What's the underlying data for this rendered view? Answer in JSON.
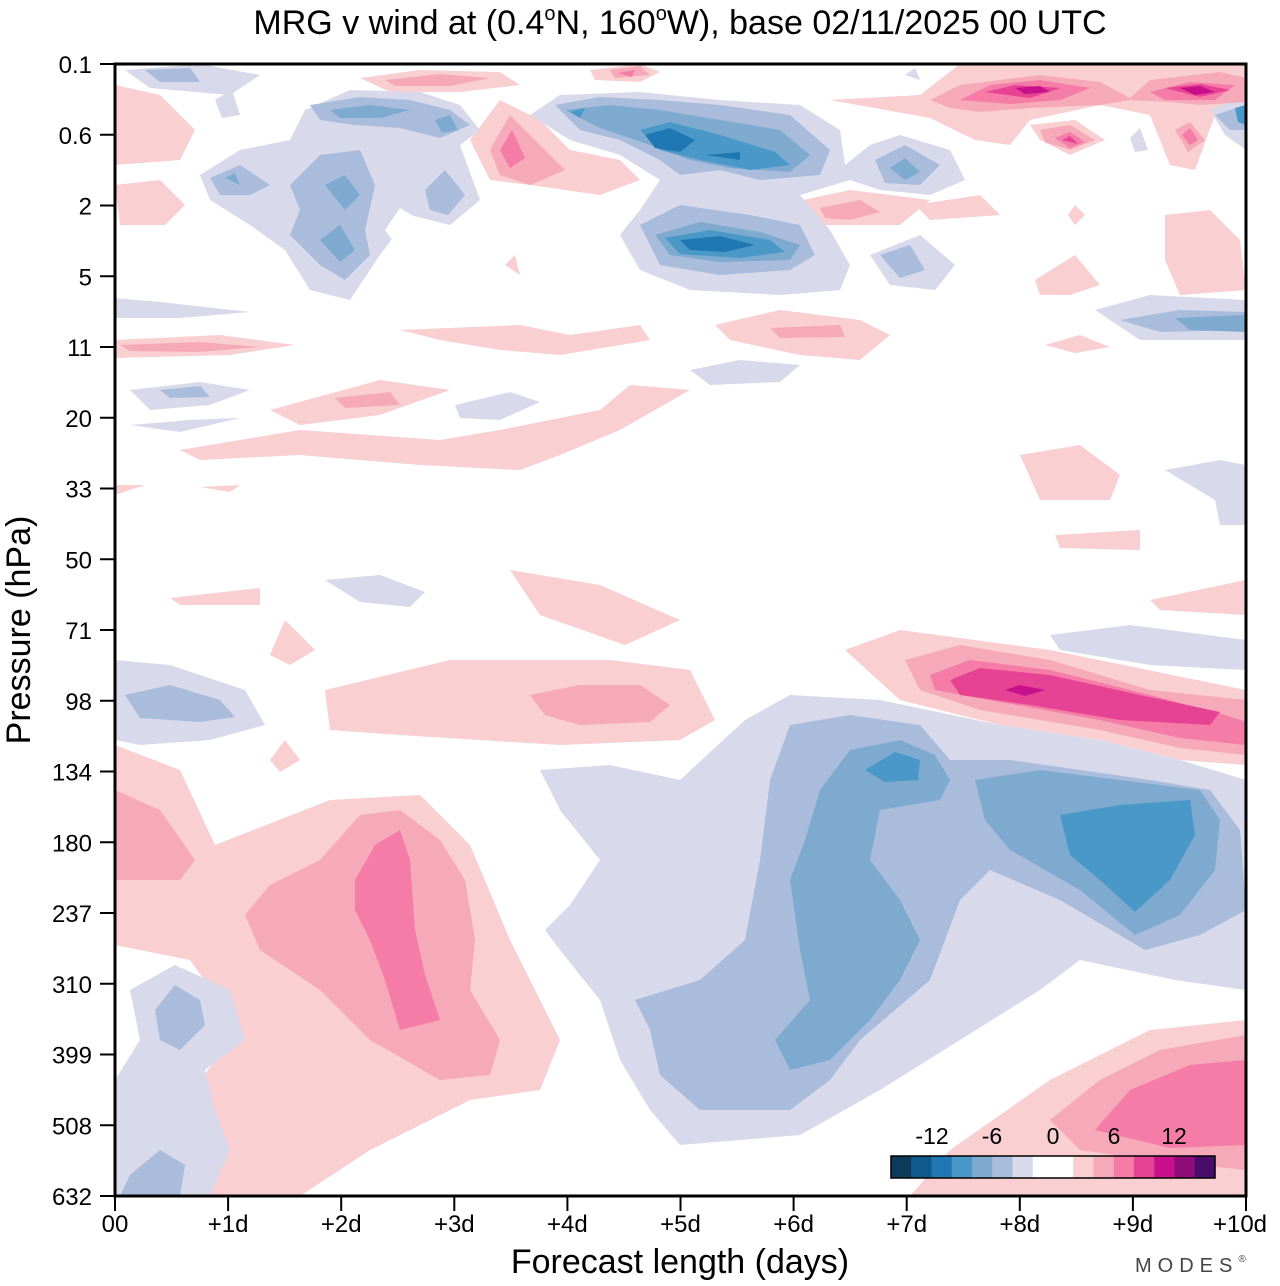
{
  "chart_data": {
    "type": "heatmap",
    "title": "MRG v wind at (0.4°N, 160°W),  base 02/11/2025  00 UTC",
    "title_parts": {
      "prefix": "MRG v wind at (0.4",
      "deg1": "o",
      "lat_hemi": "N, 160",
      "deg2": "o",
      "suffix": "W),  base 02/11/2025  00 UTC"
    },
    "xlabel": "Forecast length (days)",
    "ylabel": "Pressure (hPa)",
    "x_ticks": [
      "00",
      "+1d",
      "+2d",
      "+3d",
      "+4d",
      "+5d",
      "+6d",
      "+7d",
      "+8d",
      "+9d",
      "+10d"
    ],
    "xlim": [
      0,
      10
    ],
    "y_ticks": [
      "0.1",
      "0.6",
      "2",
      "5",
      "11",
      "20",
      "33",
      "50",
      "71",
      "98",
      "134",
      "180",
      "237",
      "310",
      "399",
      "508",
      "632"
    ],
    "y_scale": "log-pressure (top 0.1 hPa, bottom 632 hPa)",
    "colorbar": {
      "labels": [
        "-12",
        "-6",
        "0",
        "6",
        "12"
      ],
      "levels": [
        -16,
        -14,
        -12,
        -10,
        -8,
        -6,
        -4,
        -2,
        0,
        2,
        4,
        6,
        8,
        10,
        12,
        14,
        16
      ],
      "colors": [
        "#0d3b5a",
        "#0f5a8a",
        "#1f78b4",
        "#4a98c8",
        "#7eaad0",
        "#a9bcdb",
        "#d8d9ea",
        "#ffffff",
        "#ffffff",
        "#f9cfd1",
        "#f5a9b9",
        "#f47ca6",
        "#e64395",
        "#c8108a",
        "#8f0b7a",
        "#4a0c6b"
      ]
    },
    "features": [
      {
        "name": "blue region upper troposphere",
        "x": [
          5.0,
          9.9
        ],
        "p_hpa": [
          110,
          520
        ],
        "min_value": -12
      },
      {
        "name": "pink band near tropopause",
        "x": [
          6.5,
          10.0
        ],
        "p_hpa": [
          75,
          130
        ],
        "max_value": 14
      },
      {
        "name": "pink region mid troposphere",
        "x": [
          0.0,
          4.0
        ],
        "p_hpa": [
          130,
          480
        ],
        "max_value": 8
      },
      {
        "name": "blue region lower stratosphere",
        "x": [
          3.5,
          6.5
        ],
        "p_hpa": [
          0.4,
          5
        ],
        "min_value": -12
      },
      {
        "name": "pink region lower troposphere",
        "x": [
          7.0,
          10.0
        ],
        "p_hpa": [
          380,
          632
        ],
        "max_value": 8
      }
    ]
  },
  "branding": {
    "text": "MODES",
    "mark": "®"
  }
}
